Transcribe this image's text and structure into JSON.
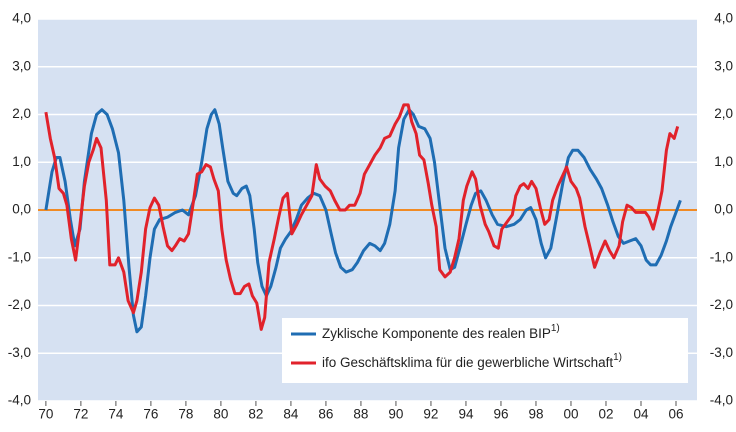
{
  "chart_data": {
    "type": "line",
    "xlim": [
      1969.55,
      2007.2
    ],
    "ylim": [
      -4,
      4
    ],
    "y2lim": [
      -4,
      4
    ],
    "xticks": [
      {
        "value": 1970,
        "label": "70"
      },
      {
        "value": 1972,
        "label": "72"
      },
      {
        "value": 1974,
        "label": "74"
      },
      {
        "value": 1976,
        "label": "76"
      },
      {
        "value": 1978,
        "label": "78"
      },
      {
        "value": 1980,
        "label": "80"
      },
      {
        "value": 1982,
        "label": "82"
      },
      {
        "value": 1984,
        "label": "84"
      },
      {
        "value": 1986,
        "label": "86"
      },
      {
        "value": 1988,
        "label": "88"
      },
      {
        "value": 1990,
        "label": "90"
      },
      {
        "value": 1992,
        "label": "92"
      },
      {
        "value": 1994,
        "label": "94"
      },
      {
        "value": 1996,
        "label": "96"
      },
      {
        "value": 1998,
        "label": "98"
      },
      {
        "value": 2000,
        "label": "00"
      },
      {
        "value": 2002,
        "label": "02"
      },
      {
        "value": 2004,
        "label": "04"
      },
      {
        "value": 2006,
        "label": "06"
      }
    ],
    "yticks": [
      {
        "value": 4,
        "label": "4,0"
      },
      {
        "value": 3,
        "label": "3,0"
      },
      {
        "value": 2,
        "label": "2,0"
      },
      {
        "value": 1,
        "label": "1,0"
      },
      {
        "value": 0,
        "label": "0,0"
      },
      {
        "value": -1,
        "label": "-1,0"
      },
      {
        "value": -2,
        "label": "-2,0"
      },
      {
        "value": -3,
        "label": "-3,0"
      },
      {
        "value": -4,
        "label": "-4,0"
      }
    ],
    "y2ticks": [
      {
        "value": 4,
        "label": "4,0"
      },
      {
        "value": 3,
        "label": "3,0"
      },
      {
        "value": 2,
        "label": "2,0"
      },
      {
        "value": 1,
        "label": "1,0"
      },
      {
        "value": 0,
        "label": "0,0"
      },
      {
        "value": -1,
        "label": "-1,0"
      },
      {
        "value": -2,
        "label": "-2,0"
      },
      {
        "value": -3,
        "label": "-3,0"
      },
      {
        "value": -4,
        "label": "-4,0"
      }
    ],
    "grid": true,
    "background": "#d6e1f2",
    "baseline_color": "#f08a24",
    "legend": "lower right",
    "series": [
      {
        "name": "Zyklische Komponente des realen BIP",
        "footnote": "1)",
        "color": "#1f6db3",
        "x": [
          1970.0,
          1970.35,
          1970.6,
          1970.8,
          1971.1,
          1971.4,
          1971.65,
          1971.95,
          1972.2,
          1972.6,
          1972.9,
          1973.2,
          1973.5,
          1973.8,
          1974.15,
          1974.45,
          1974.75,
          1975.0,
          1975.2,
          1975.45,
          1975.7,
          1975.95,
          1976.2,
          1976.5,
          1976.95,
          1977.4,
          1977.8,
          1978.15,
          1978.55,
          1978.9,
          1979.2,
          1979.45,
          1979.65,
          1979.9,
          1980.1,
          1980.4,
          1980.7,
          1980.9,
          1981.2,
          1981.45,
          1981.65,
          1981.9,
          1982.1,
          1982.35,
          1982.6,
          1982.85,
          1983.15,
          1983.4,
          1983.7,
          1984.0,
          1984.3,
          1984.6,
          1984.95,
          1985.3,
          1985.65,
          1986.0,
          1986.3,
          1986.55,
          1986.85,
          1987.15,
          1987.5,
          1987.8,
          1988.15,
          1988.5,
          1988.8,
          1989.1,
          1989.35,
          1989.65,
          1989.95,
          1990.15,
          1990.45,
          1990.75,
          1991.0,
          1991.3,
          1991.65,
          1991.95,
          1992.2,
          1992.5,
          1992.8,
          1993.1,
          1993.35,
          1993.65,
          1994.0,
          1994.3,
          1994.55,
          1994.85,
          1995.15,
          1995.5,
          1995.8,
          1996.3,
          1996.75,
          1997.1,
          1997.45,
          1997.7,
          1998.0,
          1998.3,
          1998.55,
          1998.85,
          1999.2,
          1999.55,
          1999.85,
          2000.1,
          2000.4,
          2000.75,
          2001.1,
          2001.45,
          2001.75,
          2002.1,
          2002.4,
          2002.7,
          2003.0,
          2003.35,
          2003.7,
          2004.0,
          2004.3,
          2004.55,
          2004.85,
          2005.15,
          2005.45,
          2005.7,
          2006.0,
          2006.25
        ],
        "values": [
          0.0,
          0.8,
          1.1,
          1.1,
          0.6,
          -0.2,
          -0.75,
          -0.4,
          0.6,
          1.6,
          2.0,
          2.1,
          2.0,
          1.7,
          1.2,
          0.2,
          -1.2,
          -2.2,
          -2.55,
          -2.45,
          -1.8,
          -1.0,
          -0.4,
          -0.2,
          -0.15,
          -0.05,
          0.0,
          -0.1,
          0.3,
          1.0,
          1.7,
          2.0,
          2.1,
          1.8,
          1.3,
          0.6,
          0.35,
          0.3,
          0.45,
          0.5,
          0.3,
          -0.4,
          -1.1,
          -1.6,
          -1.8,
          -1.6,
          -1.2,
          -0.8,
          -0.6,
          -0.45,
          -0.2,
          0.1,
          0.25,
          0.35,
          0.3,
          0.0,
          -0.5,
          -0.9,
          -1.2,
          -1.3,
          -1.25,
          -1.1,
          -0.85,
          -0.7,
          -0.75,
          -0.85,
          -0.7,
          -0.3,
          0.4,
          1.3,
          1.9,
          2.1,
          2.0,
          1.75,
          1.7,
          1.5,
          1.0,
          0.1,
          -0.8,
          -1.25,
          -1.2,
          -0.8,
          -0.3,
          0.1,
          0.35,
          0.4,
          0.2,
          -0.1,
          -0.3,
          -0.35,
          -0.3,
          -0.2,
          0.0,
          0.05,
          -0.2,
          -0.7,
          -1.0,
          -0.8,
          -0.1,
          0.6,
          1.1,
          1.25,
          1.25,
          1.1,
          0.85,
          0.65,
          0.45,
          0.1,
          -0.25,
          -0.55,
          -0.7,
          -0.65,
          -0.6,
          -0.75,
          -1.05,
          -1.15,
          -1.15,
          -0.95,
          -0.65,
          -0.35,
          -0.05,
          0.2
        ]
      },
      {
        "name": "ifo Geschäftsklima für die gewerbliche Wirtschaft",
        "footnote": "1)",
        "color": "#e1222b",
        "x": [
          1970.0,
          1970.25,
          1970.5,
          1970.75,
          1971.0,
          1971.2,
          1971.45,
          1971.7,
          1971.95,
          1972.2,
          1972.45,
          1972.7,
          1972.9,
          1973.15,
          1973.45,
          1973.65,
          1973.95,
          1974.15,
          1974.45,
          1974.7,
          1975.0,
          1975.2,
          1975.45,
          1975.7,
          1975.95,
          1976.2,
          1976.45,
          1976.7,
          1976.95,
          1977.2,
          1977.4,
          1977.65,
          1977.9,
          1978.15,
          1978.4,
          1978.65,
          1978.9,
          1979.15,
          1979.4,
          1979.6,
          1979.85,
          1980.05,
          1980.3,
          1980.55,
          1980.8,
          1981.1,
          1981.35,
          1981.6,
          1981.8,
          1982.05,
          1982.3,
          1982.5,
          1982.75,
          1983.05,
          1983.3,
          1983.55,
          1983.8,
          1984.05,
          1984.35,
          1984.6,
          1984.9,
          1985.2,
          1985.45,
          1985.65,
          1985.95,
          1986.25,
          1986.5,
          1986.8,
          1987.1,
          1987.35,
          1987.65,
          1987.95,
          1988.2,
          1988.5,
          1988.8,
          1989.1,
          1989.35,
          1989.65,
          1989.95,
          1990.2,
          1990.45,
          1990.7,
          1990.9,
          1991.15,
          1991.35,
          1991.6,
          1991.85,
          1992.05,
          1992.3,
          1992.5,
          1992.8,
          1993.1,
          1993.35,
          1993.6,
          1993.85,
          1994.05,
          1994.35,
          1994.55,
          1994.8,
          1995.1,
          1995.3,
          1995.6,
          1995.85,
          1996.05,
          1996.35,
          1996.65,
          1996.85,
          1997.1,
          1997.3,
          1997.55,
          1997.75,
          1998.0,
          1998.25,
          1998.5,
          1998.75,
          1998.95,
          1999.25,
          1999.5,
          1999.75,
          2000.0,
          2000.3,
          2000.5,
          2000.8,
          2001.1,
          2001.35,
          2001.65,
          2001.95,
          2002.2,
          2002.45,
          2002.75,
          2002.95,
          2003.2,
          2003.45,
          2003.7,
          2003.95,
          2004.25,
          2004.45,
          2004.7,
          2004.95,
          2005.2,
          2005.45,
          2005.65,
          2005.9,
          2006.1
        ],
        "values": [
          2.05,
          1.5,
          1.1,
          0.45,
          0.35,
          0.1,
          -0.6,
          -1.05,
          -0.3,
          0.5,
          1.0,
          1.25,
          1.5,
          1.3,
          0.2,
          -1.15,
          -1.15,
          -1.0,
          -1.3,
          -1.9,
          -2.15,
          -1.9,
          -1.3,
          -0.4,
          0.05,
          0.25,
          0.1,
          -0.35,
          -0.75,
          -0.85,
          -0.75,
          -0.6,
          -0.65,
          -0.5,
          0.1,
          0.75,
          0.8,
          0.95,
          0.9,
          0.65,
          0.4,
          -0.4,
          -1.05,
          -1.45,
          -1.75,
          -1.75,
          -1.6,
          -1.55,
          -1.8,
          -1.95,
          -2.5,
          -2.25,
          -1.1,
          -0.6,
          -0.15,
          0.25,
          0.35,
          -0.5,
          -0.3,
          -0.1,
          0.1,
          0.3,
          0.95,
          0.65,
          0.5,
          0.4,
          0.2,
          0.0,
          0.0,
          0.1,
          0.1,
          0.35,
          0.75,
          0.95,
          1.15,
          1.3,
          1.5,
          1.55,
          1.8,
          1.95,
          2.2,
          2.2,
          1.85,
          1.6,
          1.15,
          1.05,
          0.55,
          0.1,
          -0.35,
          -1.25,
          -1.4,
          -1.3,
          -1.0,
          -0.6,
          0.2,
          0.5,
          0.8,
          0.65,
          0.1,
          -0.3,
          -0.45,
          -0.75,
          -0.8,
          -0.4,
          -0.25,
          -0.1,
          0.3,
          0.5,
          0.55,
          0.45,
          0.6,
          0.45,
          0.05,
          -0.3,
          -0.2,
          0.2,
          0.5,
          0.7,
          0.9,
          0.6,
          0.45,
          0.25,
          -0.35,
          -0.8,
          -1.2,
          -0.9,
          -0.65,
          -0.85,
          -1.0,
          -0.75,
          -0.25,
          0.1,
          0.05,
          -0.05,
          -0.05,
          -0.05,
          -0.15,
          -0.4,
          -0.05,
          0.4,
          1.25,
          1.6,
          1.5,
          1.75
        ]
      }
    ]
  }
}
